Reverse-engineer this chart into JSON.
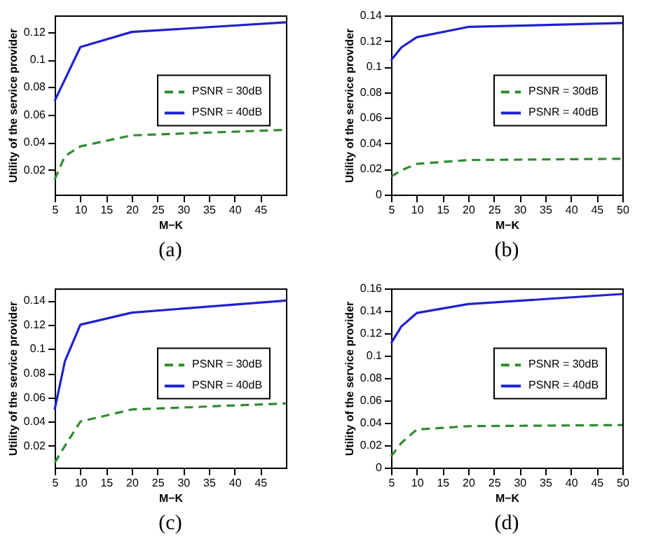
{
  "chart_data": [
    {
      "type": "line",
      "xlabel": "M−K",
      "ylabel": "Utility of the service provider",
      "annotations": [
        "(a)"
      ],
      "xlim": [
        5,
        50
      ],
      "xticks": [
        5,
        10,
        15,
        20,
        25,
        30,
        35,
        40,
        45
      ],
      "ylim": [
        0.002,
        0.132
      ],
      "yticks": [
        0.02,
        0.04,
        0.06,
        0.08,
        0.1,
        0.12
      ],
      "legend": "right",
      "grid": false,
      "series": [
        {
          "name": "PSNR = 30dB",
          "color": "#2e8b2e",
          "line_style": "dashed",
          "x": [
            5,
            7,
            10,
            20,
            50
          ],
          "values": [
            0.013,
            0.03,
            0.037,
            0.045,
            0.049
          ]
        },
        {
          "name": "PSNR = 40dB",
          "color": "#2020d0",
          "line_style": "solid",
          "x": [
            5,
            10,
            20,
            50
          ],
          "values": [
            0.07,
            0.109,
            0.12,
            0.127
          ]
        }
      ]
    },
    {
      "type": "line",
      "xlabel": "M−K",
      "ylabel": "Utility of the service provider",
      "annotations": [
        "(b)"
      ],
      "xlim": [
        5,
        50
      ],
      "xticks": [
        5,
        10,
        15,
        20,
        25,
        30,
        35,
        40,
        45,
        50
      ],
      "ylim": [
        0,
        0.14
      ],
      "yticks": [
        0,
        0.02,
        0.04,
        0.06,
        0.08,
        0.1,
        0.12,
        0.14
      ],
      "legend": "right",
      "grid": false,
      "series": [
        {
          "name": "PSNR = 30dB",
          "color": "#2e8b2e",
          "line_style": "dashed",
          "x": [
            5,
            7,
            10,
            20,
            50
          ],
          "values": [
            0.014,
            0.019,
            0.024,
            0.027,
            0.028
          ]
        },
        {
          "name": "PSNR = 40dB",
          "color": "#2020d0",
          "line_style": "solid",
          "x": [
            5,
            7,
            10,
            20,
            50
          ],
          "values": [
            0.105,
            0.115,
            0.123,
            0.131,
            0.134
          ]
        }
      ]
    },
    {
      "type": "line",
      "xlabel": "M−K",
      "ylabel": "Utility of the service provider",
      "annotations": [
        "(c)"
      ],
      "xlim": [
        5,
        50
      ],
      "xticks": [
        5,
        10,
        15,
        20,
        25,
        30,
        35,
        40,
        45
      ],
      "ylim": [
        0.002,
        0.15
      ],
      "yticks": [
        0.02,
        0.04,
        0.06,
        0.08,
        0.1,
        0.12,
        0.14
      ],
      "legend": "right",
      "grid": false,
      "series": [
        {
          "name": "PSNR = 30dB",
          "color": "#2e8b2e",
          "line_style": "dashed",
          "x": [
            5,
            7,
            10,
            20,
            50
          ],
          "values": [
            0.006,
            0.02,
            0.04,
            0.05,
            0.055
          ]
        },
        {
          "name": "PSNR = 40dB",
          "color": "#2020d0",
          "line_style": "solid",
          "x": [
            5,
            7,
            10,
            20,
            50
          ],
          "values": [
            0.05,
            0.09,
            0.12,
            0.13,
            0.14
          ]
        }
      ]
    },
    {
      "type": "line",
      "xlabel": "M−K",
      "ylabel": "Utility of the service provider",
      "annotations": [
        "(d)"
      ],
      "xlim": [
        5,
        50
      ],
      "xticks": [
        5,
        10,
        15,
        20,
        25,
        30,
        35,
        40,
        45,
        50
      ],
      "ylim": [
        0,
        0.16
      ],
      "yticks": [
        0,
        0.02,
        0.04,
        0.06,
        0.08,
        0.1,
        0.12,
        0.14,
        0.16
      ],
      "legend": "right",
      "grid": false,
      "series": [
        {
          "name": "PSNR = 30dB",
          "color": "#2e8b2e",
          "line_style": "dashed",
          "x": [
            5,
            7,
            10,
            20,
            50
          ],
          "values": [
            0.01,
            0.022,
            0.034,
            0.037,
            0.038
          ]
        },
        {
          "name": "PSNR = 40dB",
          "color": "#2020d0",
          "line_style": "solid",
          "x": [
            5,
            7,
            10,
            20,
            50
          ],
          "values": [
            0.111,
            0.126,
            0.138,
            0.146,
            0.155
          ]
        }
      ]
    }
  ]
}
